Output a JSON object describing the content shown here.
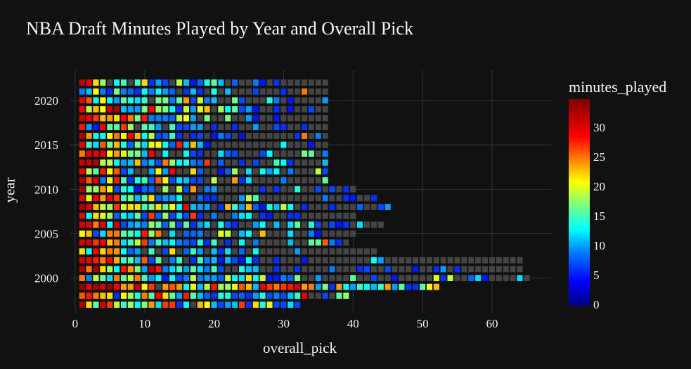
{
  "title": "NBA Draft Minutes Played by Year and Overall Pick",
  "xaxis": {
    "title": "overall_pick",
    "ticks": [
      "0",
      "10",
      "20",
      "30",
      "40",
      "50",
      "60"
    ],
    "tick_values": [
      0,
      10,
      20,
      30,
      40,
      50,
      60
    ],
    "range": [
      -0.7,
      68.5
    ]
  },
  "yaxis": {
    "title": "year",
    "ticks": [
      "2000",
      "2005",
      "2010",
      "2015",
      "2020"
    ],
    "tick_values": [
      2000,
      2005,
      2010,
      2015,
      2020
    ],
    "range": [
      1996.1,
      2023.4
    ]
  },
  "colorbar": {
    "title": "minutes_played",
    "ticks": [
      "0",
      "5",
      "10",
      "15",
      "20",
      "25",
      "30"
    ],
    "tick_values": [
      0,
      5,
      10,
      15,
      20,
      25,
      30
    ],
    "range": [
      0,
      35
    ],
    "colorscale": "Jet"
  },
  "colors": {
    "background": "#111111",
    "grid": "#283442",
    "missing": "#444444",
    "text": "#f2f5fa"
  },
  "chart_data": {
    "type": "heatmap",
    "title": "NBA Draft Minutes Played by Year and Overall Pick",
    "xlabel": "overall_pick",
    "ylabel": "year",
    "colorbar_label": "minutes_played",
    "zlim": [
      0,
      35
    ],
    "xlim": [
      -0.7,
      68.5
    ],
    "ylim": [
      1996.1,
      2023.4
    ],
    "grid": true,
    "legend_position": "right (colorbar)",
    "note": "Values approximated from cell colors on Jet scale; null = gray cell (no/zero minutes). Each row lists picks 1..N.",
    "rows": [
      {
        "year": 2022,
        "values": [
          32,
          30,
          22,
          18,
          null,
          13,
          15,
          null,
          15,
          22,
          6,
          10,
          7,
          null,
          19,
          11,
          5,
          8,
          14,
          16,
          11,
          null,
          8,
          null,
          null,
          9,
          5,
          null,
          6,
          null,
          null,
          null,
          null,
          null,
          null,
          null
        ]
      },
      {
        "year": 2021,
        "values": [
          9,
          11,
          21,
          9,
          6,
          17,
          9,
          8,
          6,
          13,
          9,
          13,
          10,
          8,
          null,
          6,
          11,
          6,
          null,
          14,
          null,
          11,
          null,
          null,
          null,
          7,
          null,
          null,
          null,
          6,
          null,
          null,
          25,
          null,
          null,
          null
        ]
      },
      {
        "year": 2020,
        "values": [
          30,
          26,
          13,
          21,
          13,
          10,
          16,
          14,
          12,
          15,
          null,
          17,
          17,
          9,
          16,
          24,
          7,
          20,
          9,
          11,
          null,
          null,
          17,
          7,
          null,
          null,
          null,
          14,
          9,
          null,
          5,
          null,
          null,
          null,
          null,
          10
        ]
      },
      {
        "year": 2019,
        "values": [
          29,
          19,
          23,
          21,
          31,
          33,
          11,
          10,
          10,
          17,
          29,
          18,
          17,
          13,
          6,
          19,
          10,
          20,
          23,
          null,
          18,
          13,
          16,
          7,
          10,
          5,
          null,
          null,
          6,
          null,
          5,
          null,
          null,
          7,
          null,
          null
        ]
      },
      {
        "year": 2018,
        "values": [
          31,
          29,
          27,
          23,
          24,
          22,
          29,
          25,
          17,
          28,
          9,
          9,
          9,
          8,
          19,
          21,
          10,
          null,
          17,
          null,
          null,
          17,
          null,
          null,
          10,
          5,
          null,
          null,
          5,
          null,
          null,
          null,
          null,
          null,
          null,
          null
        ]
      },
      {
        "year": 2017,
        "values": [
          28,
          10,
          5,
          29,
          16,
          16,
          27,
          18,
          null,
          16,
          15,
          10,
          null,
          15,
          7,
          7,
          10,
          10,
          null,
          6,
          null,
          null,
          6,
          null,
          null,
          10,
          null,
          null,
          7,
          6,
          null,
          null,
          6,
          null,
          null,
          null
        ]
      },
      {
        "year": 2016,
        "values": [
          33,
          24,
          13,
          13,
          21,
          25,
          21,
          29,
          23,
          13,
          19,
          7,
          8,
          15,
          6,
          null,
          6,
          7,
          null,
          5,
          9,
          7,
          null,
          5,
          null,
          null,
          null,
          null,
          null,
          null,
          null,
          6,
          25,
          null,
          9,
          null
        ]
      },
      {
        "year": 2015,
        "values": [
          30,
          15,
          12,
          26,
          17,
          23,
          14,
          8,
          17,
          12,
          21,
          21,
          13,
          8,
          28,
          11,
          23,
          11,
          5,
          null,
          null,
          null,
          null,
          null,
          null,
          null,
          null,
          null,
          null,
          13,
          null,
          null,
          null,
          5,
          null,
          null
        ]
      },
      {
        "year": 2014,
        "values": [
          25,
          30,
          30,
          30,
          21,
          24,
          20,
          17,
          17,
          11,
          29,
          null,
          13,
          null,
          null,
          13,
          7,
          6,
          null,
          null,
          12,
          8,
          7,
          null,
          null,
          null,
          7,
          13,
          null,
          null,
          null,
          null,
          17,
          16,
          null,
          9
        ]
      },
      {
        "year": 2013,
        "values": [
          32,
          32,
          33,
          19,
          19,
          13,
          10,
          11,
          23,
          9,
          11,
          7,
          25,
          18,
          13,
          14,
          9,
          8,
          27,
          null,
          8,
          null,
          null,
          6,
          null,
          7,
          null,
          null,
          15,
          13,
          6,
          null,
          null,
          null,
          null,
          11
        ]
      },
      {
        "year": 2012,
        "values": [
          30,
          19,
          16,
          28,
          21,
          26,
          7,
          11,
          null,
          null,
          10,
          21,
          10,
          29,
          null,
          null,
          22,
          8,
          null,
          null,
          5,
          8,
          18,
          null,
          12,
          null,
          13,
          10,
          13,
          null,
          9,
          null,
          null,
          null,
          19,
          7
        ]
      },
      {
        "year": 2011,
        "values": [
          33,
          26,
          30,
          9,
          20,
          28,
          15,
          6,
          14,
          15,
          8,
          26,
          21,
          7,
          12,
          11,
          7,
          7,
          null,
          19,
          null,
          null,
          24,
          6,
          12,
          null,
          null,
          null,
          null,
          9,
          null,
          null,
          null,
          null,
          null,
          16
        ]
      },
      {
        "year": 2010,
        "values": [
          33,
          18,
          18,
          24,
          21,
          7,
          14,
          13,
          5,
          8,
          8,
          null,
          18,
          null,
          19,
          7,
          24,
          null,
          9,
          10,
          null,
          null,
          null,
          null,
          null,
          null,
          6,
          null,
          6,
          null,
          null,
          14,
          null,
          null,
          7,
          null,
          7,
          null,
          6,
          null
        ]
      },
      {
        "year": 2009,
        "values": [
          30,
          21,
          29,
          24,
          30,
          27,
          15,
          17,
          11,
          16,
          22,
          8,
          10,
          10,
          14,
          null,
          null,
          8,
          6,
          6,
          null,
          null,
          null,
          10,
          19,
          15,
          null,
          null,
          null,
          null,
          null,
          null,
          null,
          null,
          null,
          9,
          null,
          null,
          6,
          5,
          null,
          null,
          6
        ]
      },
      {
        "year": 2008,
        "values": [
          33,
          30,
          23,
          19,
          18,
          27,
          20,
          22,
          22,
          15,
          17,
          22,
          16,
          21,
          13,
          29,
          11,
          10,
          10,
          null,
          6,
          23,
          15,
          10,
          23,
          8,
          5,
          14,
          11,
          19,
          13,
          null,
          6,
          null,
          null,
          null,
          6,
          null,
          null,
          null,
          8,
          null,
          null,
          7,
          10
        ]
      },
      {
        "year": 2007,
        "values": [
          30,
          13,
          22,
          20,
          18,
          8,
          13,
          11,
          16,
          7,
          27,
          8,
          18,
          7,
          12,
          7,
          27,
          6,
          null,
          9,
          null,
          null,
          9,
          12,
          13,
          null,
          6,
          5,
          null,
          null,
          6,
          6,
          null,
          null,
          null,
          null,
          null,
          null,
          null,
          null
        ]
      },
      {
        "year": 2006,
        "values": [
          31,
          30,
          25,
          30,
          13,
          31,
          7,
          10,
          11,
          9,
          18,
          16,
          8,
          17,
          7,
          16,
          6,
          10,
          12,
          null,
          14,
          8,
          6,
          null,
          null,
          10,
          13,
          null,
          11,
          null,
          12,
          16,
          null,
          14,
          7,
          null,
          7,
          5,
          6,
          null,
          12,
          null,
          null,
          null
        ]
      },
      {
        "year": 2005,
        "values": [
          21,
          23,
          7,
          12,
          25,
          25,
          16,
          15,
          13,
          28,
          18,
          25,
          null,
          12,
          null,
          8,
          8,
          9,
          null,
          null,
          20,
          19,
          null,
          11,
          13,
          null,
          23,
          null,
          null,
          null,
          12,
          null,
          null,
          9,
          5,
          null,
          null,
          null,
          null,
          null
        ]
      },
      {
        "year": 2004,
        "values": [
          31,
          31,
          27,
          29,
          23,
          25,
          12,
          15,
          19,
          27,
          9,
          15,
          11,
          13,
          9,
          8,
          7,
          14,
          6,
          15,
          null,
          6,
          null,
          13,
          null,
          9,
          null,
          null,
          null,
          null,
          11,
          null,
          null,
          16,
          16,
          26,
          9,
          6,
          null
        ]
      },
      {
        "year": 2003,
        "values": [
          22,
          13,
          29,
          22,
          25,
          24,
          13,
          8,
          10,
          null,
          15,
          null,
          7,
          22,
          null,
          8,
          15,
          10,
          null,
          11,
          6,
          12,
          null,
          8,
          null,
          13,
          null,
          null,
          null,
          null,
          null,
          10,
          null,
          null,
          null,
          null,
          null,
          null,
          null,
          null,
          null,
          null,
          null
        ]
      },
      {
        "year": 2002,
        "values": [
          31,
          30,
          28,
          25,
          29,
          23,
          15,
          16,
          11,
          26,
          7,
          16,
          null,
          9,
          15,
          null,
          6,
          15,
          9,
          11,
          5,
          11,
          7,
          5,
          13,
          6,
          null,
          null,
          6,
          null,
          null,
          null,
          5,
          null,
          null,
          null,
          null,
          null,
          null,
          null,
          null,
          null,
          13,
          10,
          null,
          null,
          null,
          null,
          null,
          null,
          null,
          null,
          null,
          null,
          null,
          null,
          null,
          null,
          null,
          null,
          null,
          null,
          null,
          null
        ]
      },
      {
        "year": 2001,
        "values": [
          33,
          25,
          33,
          22,
          18,
          13,
          28,
          24,
          17,
          10,
          32,
          28,
          9,
          12,
          15,
          10,
          16,
          12,
          9,
          15,
          7,
          null,
          null,
          14,
          11,
          11,
          null,
          null,
          6,
          null,
          null,
          6,
          null,
          null,
          null,
          null,
          9,
          null,
          null,
          null,
          6,
          7,
          null,
          null,
          7,
          null,
          null,
          null,
          5,
          null,
          null,
          6,
          10,
          null,
          6,
          null,
          null,
          null,
          null,
          null,
          null,
          null,
          null,
          null
        ]
      },
      {
        "year": 2000,
        "values": [
          25,
          9,
          19,
          16,
          12,
          25,
          16,
          19,
          25,
          15,
          10,
          13,
          5,
          13,
          7,
          9,
          19,
          9,
          10,
          10,
          8,
          19,
          13,
          12,
          22,
          13,
          19,
          5,
          5,
          9,
          8,
          17,
          null,
          null,
          10,
          null,
          null,
          null,
          null,
          16,
          null,
          null,
          7,
          null,
          null,
          5,
          null,
          null,
          null,
          null,
          null,
          20,
          6,
          19,
          null,
          null,
          8,
          12,
          5,
          null,
          null,
          null,
          null,
          12,
          null
        ]
      },
      {
        "year": 1999,
        "values": [
          34,
          30,
          33,
          31,
          34,
          29,
          24,
          24,
          32,
          21,
          27,
          null,
          24,
          26,
          24,
          13,
          21,
          11,
          19,
          28,
          18,
          18,
          20,
          26,
          23,
          11,
          30,
          27,
          25,
          27,
          28,
          31,
          24,
          25,
          10,
          17,
          6,
          24,
          13,
          10,
          15,
          13,
          11,
          15,
          24,
          10,
          16,
          6,
          6,
          16,
          21,
          23
        ]
      },
      {
        "year": 1999.0001,
        "label_hidden": true,
        "values": []
      },
      {
        "year": 1998,
        "values": [
          26,
          28,
          25,
          23,
          22,
          6,
          21,
          18,
          14,
          25,
          16,
          29,
          22,
          16,
          10,
          28,
          16,
          11,
          8,
          6,
          14,
          14,
          7,
          8,
          6,
          10,
          14,
          7,
          9,
          7,
          11,
          15,
          30,
          null,
          null,
          7,
          null,
          16,
          18
        ]
      },
      {
        "year": 1997,
        "values": [
          33,
          22,
          16,
          31,
          27,
          19,
          15,
          18,
          13,
          17,
          24,
          12,
          27,
          27,
          6,
          13,
          null,
          23,
          21,
          11,
          7,
          10,
          11,
          27,
          6,
          22,
          14,
          20,
          7,
          7,
          12,
          7
        ]
      }
    ]
  }
}
